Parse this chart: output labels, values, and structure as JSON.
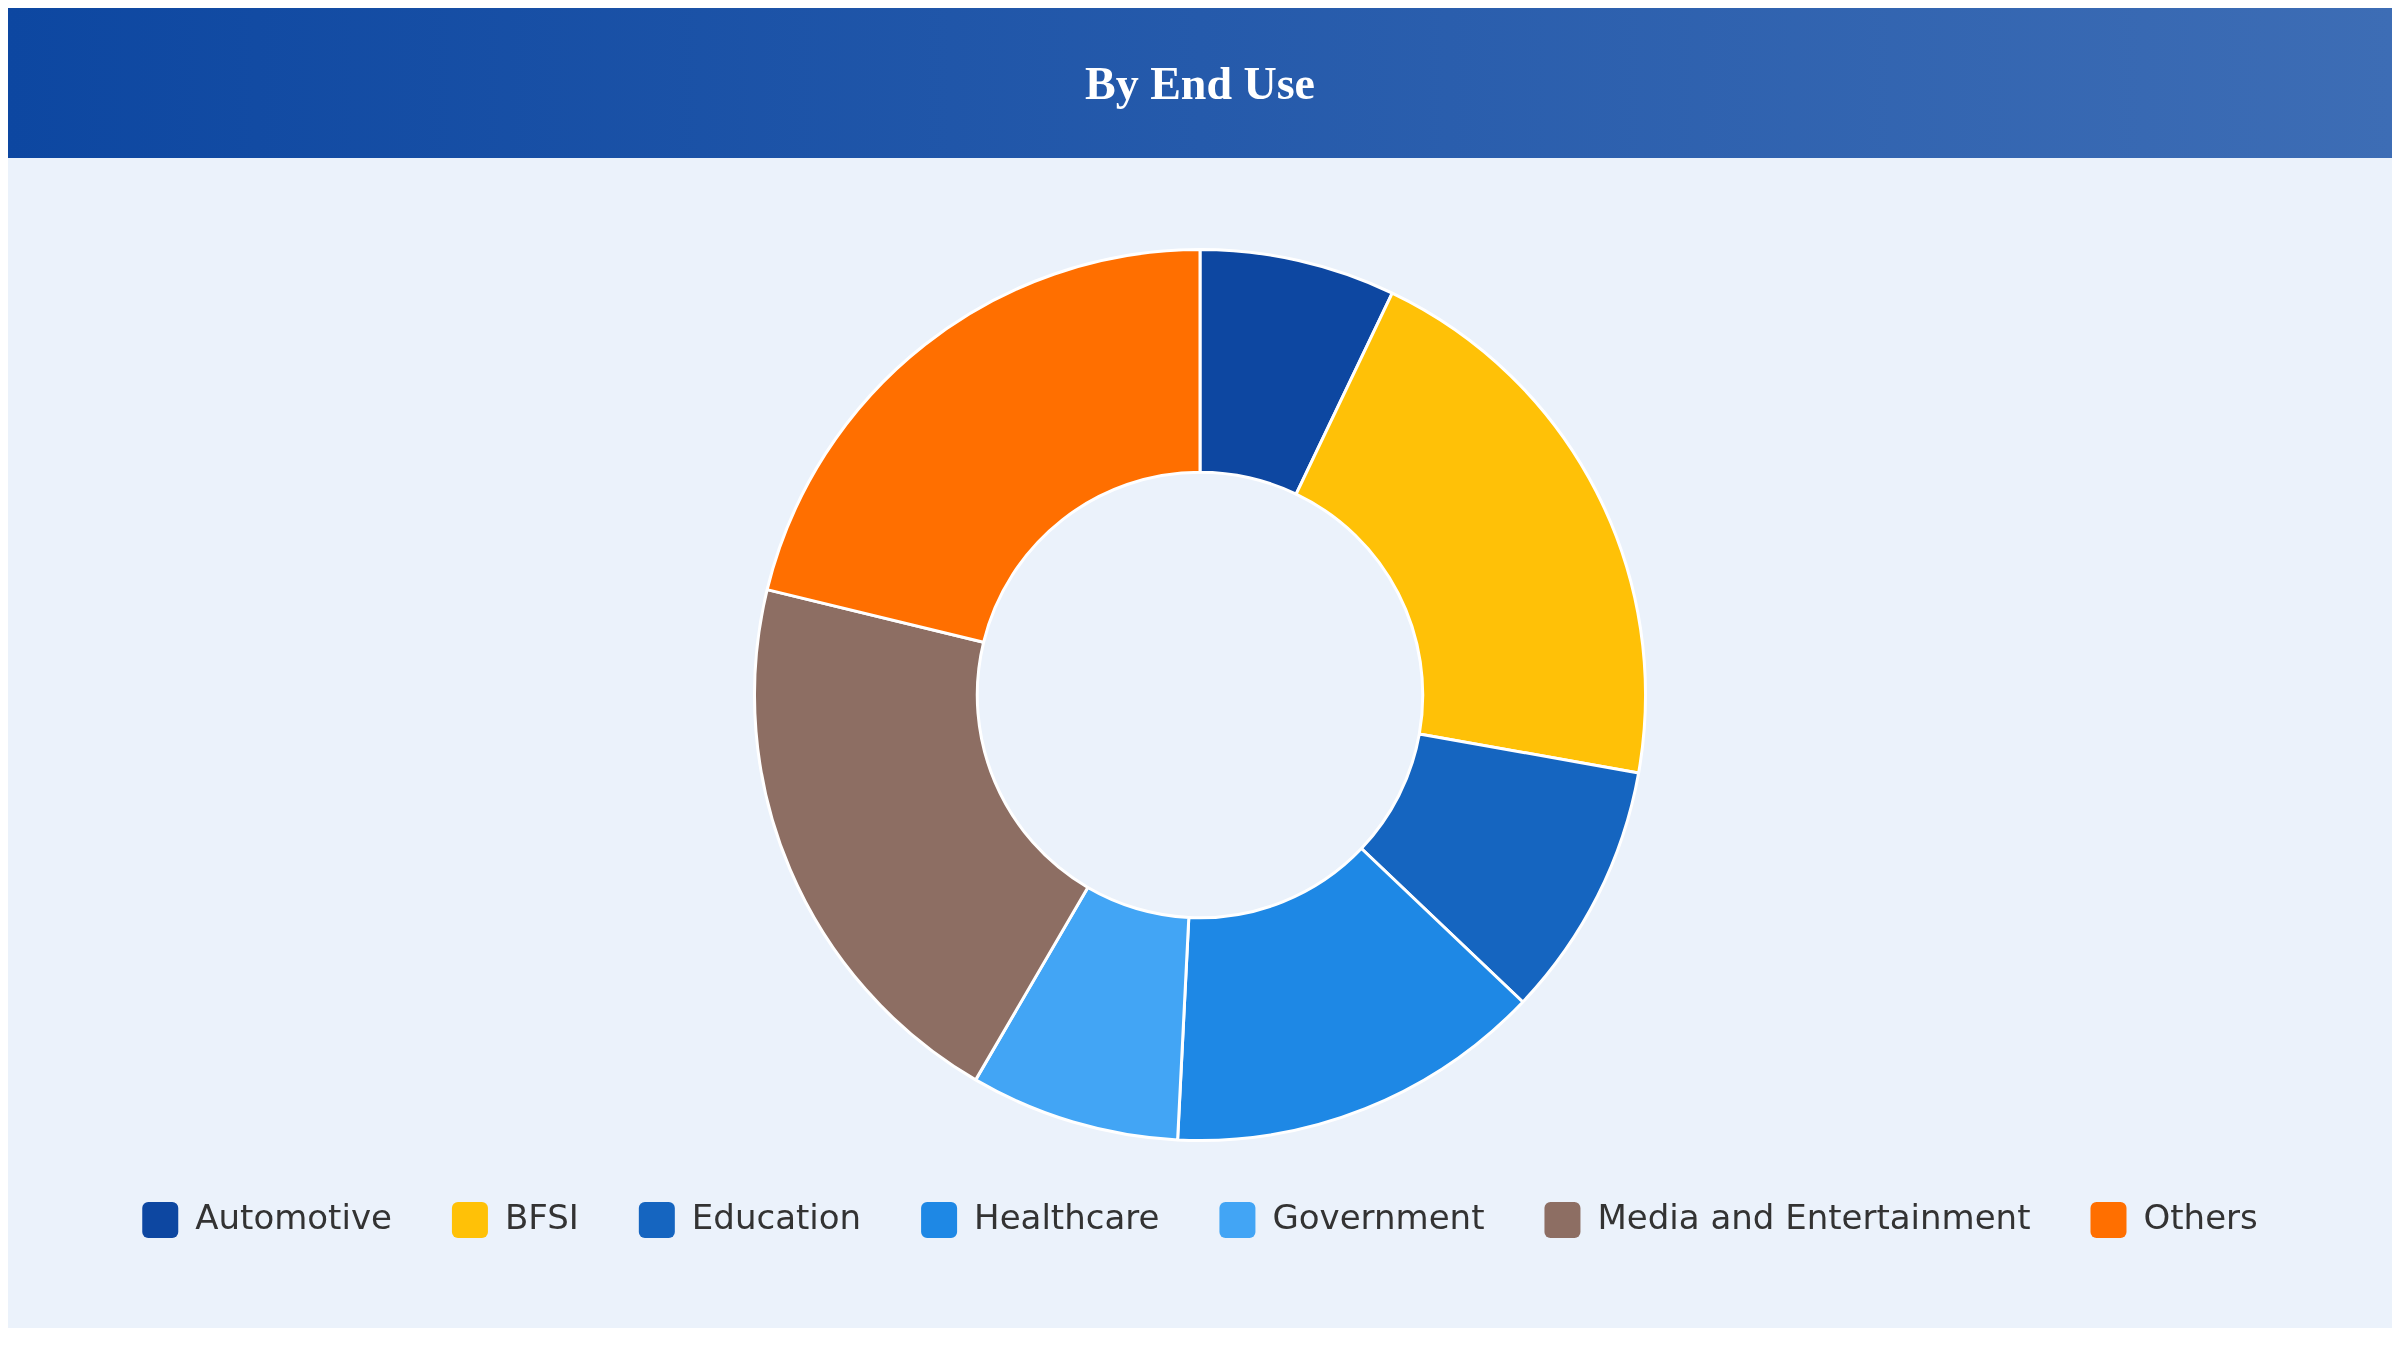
{
  "chart_data": {
    "type": "donut",
    "title": "By End Use",
    "categories": [
      "Automotive",
      "BFSI",
      "Education",
      "Healthcare",
      "Government",
      "Media and Entertainment",
      "Others"
    ],
    "values": [
      7.1,
      20.7,
      9.3,
      13.7,
      7.6,
      20.4,
      21.2
    ],
    "colors": [
      "#0d47a1",
      "#ffc107",
      "#1565c0",
      "#1e88e5",
      "#42a5f5",
      "#8d6e63",
      "#ff6f00"
    ],
    "legend": "bottom"
  }
}
